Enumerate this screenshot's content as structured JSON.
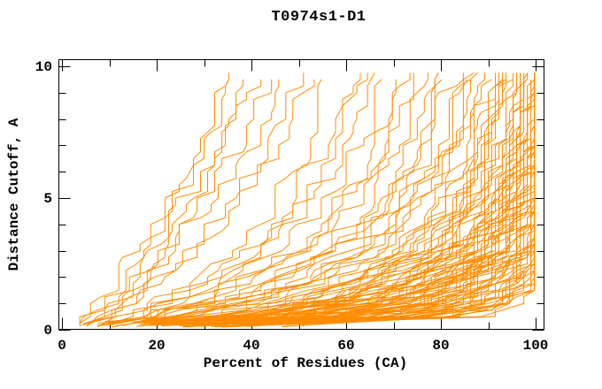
{
  "chart_data": {
    "type": "line",
    "title": "T0974s1-D1",
    "xlabel": "Percent of Residues (CA)",
    "ylabel": "Distance Cutoff, A",
    "xlim": [
      0,
      100
    ],
    "ylim": [
      0,
      10
    ],
    "x_major_ticks": [
      0,
      20,
      40,
      60,
      80,
      100
    ],
    "x_minor_tick_step": 10,
    "y_major_ticks": [
      0,
      5,
      10
    ],
    "y_minor_tick_step": 1,
    "grid": false,
    "legend_position": "none",
    "series_color": "#FF8C00",
    "frame_color": "#000000",
    "cutoff_anchors": [
      0.5,
      1,
      2,
      3,
      4.5,
      6.5,
      9.5
    ],
    "series": [
      [
        6,
        8,
        12,
        15,
        20,
        26,
        34
      ],
      [
        7,
        9,
        13,
        17,
        22,
        28,
        36
      ],
      [
        7,
        10,
        14,
        18,
        24,
        30,
        38
      ],
      [
        8,
        11,
        15,
        20,
        26,
        32,
        40
      ],
      [
        8,
        12,
        17,
        22,
        28,
        35,
        43
      ],
      [
        9,
        13,
        18,
        24,
        30,
        38,
        46
      ],
      [
        10,
        14,
        20,
        26,
        33,
        41,
        49
      ],
      [
        10,
        15,
        21,
        28,
        35,
        44,
        52
      ],
      [
        13,
        20,
        28,
        36,
        43,
        50,
        56
      ],
      [
        14,
        22,
        31,
        39,
        47,
        54,
        60
      ],
      [
        16,
        24,
        34,
        43,
        51,
        58,
        64
      ],
      [
        15,
        23,
        32,
        41,
        49,
        56,
        62
      ],
      [
        17,
        26,
        36,
        46,
        54,
        61,
        67
      ],
      [
        18,
        28,
        39,
        49,
        57,
        64,
        70
      ],
      [
        20,
        30,
        42,
        52,
        60,
        67,
        73
      ],
      [
        19,
        29,
        40,
        50,
        58,
        66,
        72
      ],
      [
        21,
        32,
        44,
        54,
        63,
        70,
        76
      ],
      [
        22,
        34,
        46,
        57,
        65,
        72,
        78
      ],
      [
        24,
        36,
        48,
        59,
        67,
        74,
        80
      ],
      [
        23,
        35,
        47,
        58,
        66,
        73,
        79
      ],
      [
        25,
        38,
        51,
        61,
        69,
        76,
        82
      ],
      [
        26,
        39,
        52,
        63,
        71,
        78,
        83
      ],
      [
        28,
        41,
        54,
        65,
        73,
        80,
        85
      ],
      [
        27,
        40,
        53,
        64,
        72,
        79,
        84
      ],
      [
        29,
        43,
        56,
        66,
        75,
        81,
        86
      ],
      [
        30,
        44,
        57,
        68,
        76,
        82,
        87
      ],
      [
        31,
        46,
        59,
        70,
        78,
        84,
        89
      ],
      [
        33,
        48,
        61,
        72,
        80,
        86,
        90
      ],
      [
        32,
        47,
        60,
        71,
        79,
        85,
        90
      ],
      [
        34,
        50,
        63,
        74,
        82,
        87,
        91
      ],
      [
        35,
        51,
        64,
        75,
        83,
        88,
        92
      ],
      [
        36,
        52,
        66,
        76,
        84,
        89,
        93
      ],
      [
        38,
        54,
        68,
        78,
        85,
        90,
        94
      ],
      [
        37,
        53,
        67,
        77,
        84,
        90,
        93
      ],
      [
        39,
        55,
        69,
        79,
        86,
        91,
        95
      ],
      [
        40,
        57,
        71,
        81,
        87,
        92,
        96
      ],
      [
        41,
        58,
        72,
        82,
        88,
        93,
        96
      ],
      [
        42,
        59,
        73,
        82,
        89,
        94,
        97
      ],
      [
        43,
        60,
        74,
        83,
        90,
        94,
        97
      ],
      [
        44,
        61,
        75,
        84,
        90,
        95,
        98
      ],
      [
        45,
        62,
        76,
        85,
        91,
        95,
        98
      ],
      [
        46,
        63,
        77,
        86,
        92,
        96,
        99
      ],
      [
        47,
        64,
        78,
        87,
        92,
        96,
        99
      ],
      [
        48,
        65,
        79,
        87,
        93,
        97,
        99
      ],
      [
        49,
        66,
        80,
        88,
        93,
        97,
        100
      ],
      [
        50,
        67,
        81,
        89,
        94,
        98,
        100
      ],
      [
        51,
        68,
        81,
        89,
        94,
        98,
        100
      ],
      [
        52,
        69,
        82,
        90,
        95,
        98,
        100
      ],
      [
        53,
        70,
        83,
        90,
        95,
        99,
        100
      ],
      [
        54,
        71,
        84,
        91,
        96,
        99,
        100
      ],
      [
        55,
        72,
        84,
        91,
        96,
        99,
        100
      ],
      [
        56,
        73,
        85,
        92,
        96,
        99,
        100
      ],
      [
        57,
        74,
        86,
        92,
        97,
        100,
        100
      ],
      [
        58,
        75,
        86,
        93,
        97,
        100,
        100
      ],
      [
        59,
        76,
        87,
        93,
        97,
        100,
        100
      ],
      [
        60,
        77,
        88,
        94,
        98,
        100,
        100
      ],
      [
        61,
        77,
        88,
        94,
        98,
        100,
        100
      ],
      [
        62,
        78,
        89,
        95,
        98,
        100,
        100
      ],
      [
        63,
        79,
        90,
        95,
        98,
        100,
        100
      ],
      [
        64,
        80,
        90,
        96,
        99,
        100,
        100
      ],
      [
        65,
        81,
        91,
        96,
        99,
        100,
        100
      ],
      [
        66,
        82,
        91,
        96,
        99,
        100,
        100
      ],
      [
        67,
        83,
        92,
        97,
        99,
        100,
        100
      ],
      [
        68,
        84,
        92,
        97,
        100,
        100,
        100
      ],
      [
        69,
        84,
        93,
        98,
        100,
        100,
        100
      ],
      [
        70,
        85,
        93,
        98,
        100,
        100,
        100
      ],
      [
        71,
        86,
        94,
        98,
        100,
        100,
        100
      ],
      [
        72,
        87,
        94,
        99,
        100,
        100,
        100
      ],
      [
        73,
        88,
        95,
        99,
        100,
        100,
        100
      ],
      [
        74,
        88,
        95,
        99,
        100,
        100,
        100
      ],
      [
        75,
        89,
        96,
        100,
        100,
        100,
        100
      ],
      [
        76,
        90,
        96,
        100,
        100,
        100,
        100
      ],
      [
        77,
        90,
        97,
        100,
        100,
        100,
        100
      ],
      [
        78,
        91,
        97,
        100,
        100,
        100,
        100
      ],
      [
        79,
        92,
        98,
        100,
        100,
        100,
        100
      ],
      [
        80,
        92,
        98,
        100,
        100,
        100,
        100
      ],
      [
        81,
        93,
        98,
        100,
        100,
        100,
        100
      ],
      [
        82,
        94,
        99,
        100,
        100,
        100,
        100
      ],
      [
        83,
        94,
        99,
        100,
        100,
        100,
        100
      ],
      [
        84,
        95,
        99,
        100,
        100,
        100,
        100
      ],
      [
        85,
        95,
        100,
        100,
        100,
        100,
        100
      ],
      [
        86,
        96,
        100,
        100,
        100,
        100,
        100
      ],
      [
        87,
        96,
        100,
        100,
        100,
        100,
        100
      ],
      [
        89,
        95,
        99,
        100,
        100,
        100,
        100
      ],
      [
        35,
        50,
        62,
        72,
        80,
        87,
        92
      ],
      [
        38,
        54,
        66,
        76,
        83,
        89,
        94
      ],
      [
        41,
        57,
        70,
        79,
        86,
        91,
        95
      ],
      [
        44,
        60,
        73,
        82,
        88,
        93,
        96
      ],
      [
        47,
        63,
        76,
        84,
        90,
        94,
        97
      ],
      [
        50,
        66,
        78,
        86,
        91,
        95,
        98
      ],
      [
        53,
        69,
        80,
        88,
        93,
        96,
        99
      ],
      [
        56,
        71,
        82,
        89,
        94,
        97,
        100
      ],
      [
        59,
        74,
        84,
        91,
        95,
        98,
        100
      ],
      [
        62,
        76,
        86,
        92,
        96,
        99,
        100
      ],
      [
        64,
        79,
        88,
        94,
        97,
        100,
        100
      ],
      [
        66,
        81,
        90,
        95,
        98,
        100,
        100
      ],
      [
        37,
        52,
        64,
        74,
        81,
        88,
        93
      ],
      [
        43,
        58,
        71,
        80,
        87,
        92,
        96
      ],
      [
        49,
        64,
        77,
        85,
        90,
        95,
        98
      ],
      [
        55,
        70,
        81,
        88,
        93,
        97,
        99
      ],
      [
        61,
        75,
        85,
        91,
        95,
        98,
        100
      ],
      [
        67,
        82,
        91,
        96,
        98,
        100,
        100
      ],
      [
        70,
        85,
        93,
        97,
        99,
        100,
        100
      ],
      [
        58,
        72,
        83,
        90,
        94,
        98,
        100
      ],
      [
        52,
        67,
        79,
        87,
        92,
        96,
        99
      ],
      [
        46,
        61,
        74,
        83,
        89,
        94,
        97
      ]
    ]
  }
}
